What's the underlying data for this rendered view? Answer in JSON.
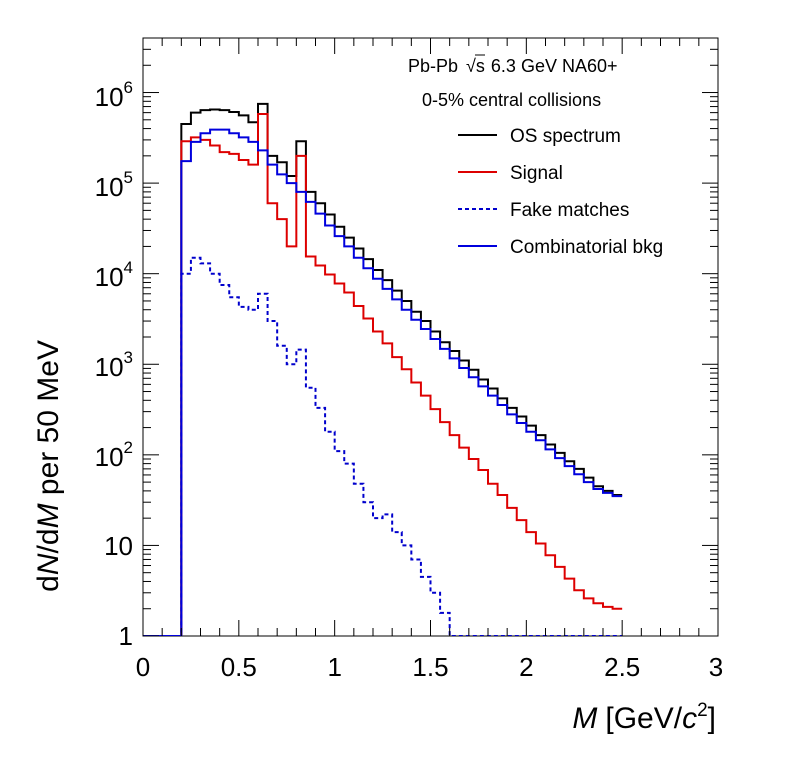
{
  "chart_data": {
    "type": "line",
    "style": "step-histogram",
    "header": {
      "line1_prefix": "Pb-Pb",
      "line1_sqrt": "√s",
      "line1_suffix": "6.3 GeV NA60+",
      "line2": "0-5% central collisions"
    },
    "xlabel": {
      "symbol": "M",
      "unit_open": "[GeV/",
      "unit_c": "c",
      "unit_exp": "2",
      "unit_close": "]"
    },
    "ylabel": {
      "p1": "d",
      "p2": "N",
      "p3": "/d",
      "p4": "M",
      "p5": " per 50 MeV"
    },
    "xlim": [
      0,
      3
    ],
    "ylim": [
      1,
      4000000
    ],
    "yscale": "log",
    "bin_width": 0.05,
    "x_ticks": [
      {
        "value": 0,
        "label": "0"
      },
      {
        "value": 0.5,
        "label": "0.5"
      },
      {
        "value": 1,
        "label": "1"
      },
      {
        "value": 1.5,
        "label": "1.5"
      },
      {
        "value": 2,
        "label": "2"
      },
      {
        "value": 2.5,
        "label": "2.5"
      },
      {
        "value": 3,
        "label": "3"
      }
    ],
    "y_ticks": [
      {
        "value": 1,
        "base": "1",
        "exp": ""
      },
      {
        "value": 10,
        "base": "10",
        "exp": ""
      },
      {
        "value": 100,
        "base": "10",
        "exp": "2"
      },
      {
        "value": 1000,
        "base": "10",
        "exp": "3"
      },
      {
        "value": 10000,
        "base": "10",
        "exp": "4"
      },
      {
        "value": 100000,
        "base": "10",
        "exp": "5"
      },
      {
        "value": 1000000,
        "base": "10",
        "exp": "6"
      }
    ],
    "series": [
      {
        "name": "OS spectrum",
        "color": "#000000",
        "dash": "",
        "values": [
          1,
          1,
          1,
          1,
          450000,
          600000,
          640000,
          650000,
          640000,
          610000,
          560000,
          470000,
          750000,
          200000,
          170000,
          120000,
          290000,
          80000,
          60000,
          45000,
          33000,
          25000,
          19000,
          14500,
          11000,
          8500,
          6500,
          5000,
          3800,
          3000,
          2300,
          1750,
          1400,
          1100,
          870,
          680,
          540,
          420,
          330,
          265,
          210,
          165,
          130,
          105,
          85,
          70,
          56,
          45,
          40,
          36
        ]
      },
      {
        "name": "Signal",
        "color": "#dd0000",
        "dash": "",
        "values": [
          1,
          1,
          1,
          1,
          290000,
          320000,
          300000,
          260000,
          220000,
          210000,
          180000,
          160000,
          580000,
          60000,
          40000,
          20000,
          200000,
          15500,
          12300,
          9800,
          7800,
          6200,
          4400,
          3200,
          2300,
          1700,
          1200,
          880,
          630,
          450,
          320,
          230,
          165,
          120,
          90,
          68,
          48,
          36,
          26,
          19,
          14,
          10.5,
          7.8,
          5.8,
          4.3,
          3.2,
          2.6,
          2.3,
          2.1,
          2.0
        ]
      },
      {
        "name": "Fake matches",
        "color": "#0000cc",
        "dash": "4,3",
        "values": [
          1,
          1,
          1,
          1,
          10000,
          15000,
          13000,
          10000,
          7500,
          5500,
          4300,
          4000,
          6000,
          3000,
          1600,
          1000,
          1450,
          550,
          330,
          180,
          110,
          80,
          48,
          30,
          20,
          22,
          14,
          10,
          7,
          4.5,
          3,
          1.8,
          1,
          1,
          1,
          1,
          1,
          1,
          1,
          1,
          1,
          1,
          1,
          1,
          1,
          1,
          1,
          1,
          1,
          1
        ]
      },
      {
        "name": "Combinatorial bkg",
        "color": "#0000dd",
        "dash": "",
        "values": [
          1,
          1,
          1,
          1,
          175000,
          285000,
          355000,
          390000,
          390000,
          355000,
          320000,
          285000,
          230000,
          160000,
          125000,
          100000,
          80000,
          62000,
          46000,
          34000,
          26000,
          20000,
          15000,
          11500,
          8800,
          6800,
          5200,
          4000,
          3100,
          2450,
          1900,
          1480,
          1160,
          910,
          720,
          570,
          450,
          355,
          280,
          225,
          180,
          145,
          115,
          92,
          75,
          61,
          50,
          42,
          38,
          35
        ]
      }
    ]
  }
}
